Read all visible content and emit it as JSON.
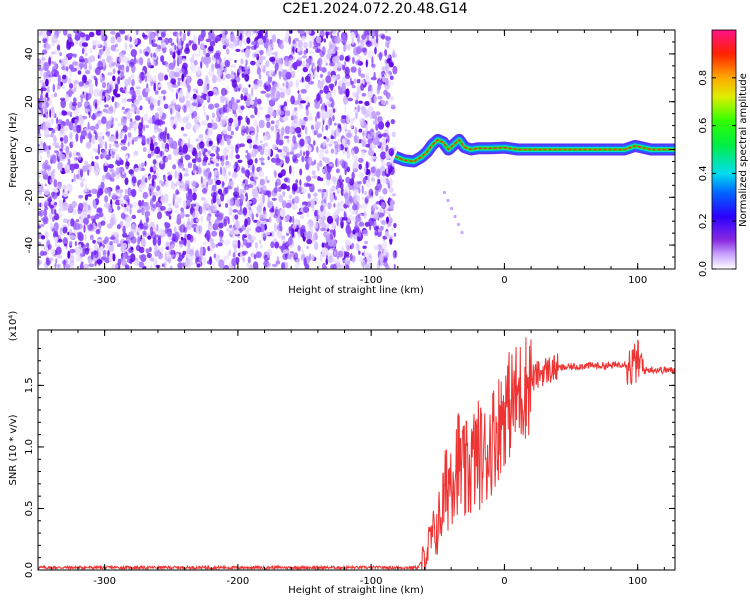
{
  "title": "C2E1.2024.072.20.48.G14",
  "chart_data": [
    {
      "type": "heatmap",
      "xlabel": "Height of straight line (km)",
      "ylabel": "Frequency (Hz)",
      "xlim": [
        -350,
        128
      ],
      "ylim": [
        -50,
        50
      ],
      "x_ticks": [
        -300,
        -200,
        -100,
        0,
        100
      ],
      "y_ticks": [
        -40,
        -20,
        0,
        20,
        40
      ],
      "noise_region_x": [
        -350,
        -82
      ],
      "signal_track": {
        "x": [
          -82,
          -75,
          -68,
          -62,
          -58,
          -54,
          -50,
          -46,
          -42,
          -38,
          -34,
          -30,
          -25,
          -20,
          -10,
          0,
          10,
          30,
          60,
          90,
          98,
          110,
          128
        ],
        "freq": [
          -3,
          -4.5,
          -5,
          -3,
          -1,
          2,
          4,
          3,
          0,
          2,
          4,
          1,
          0,
          0.5,
          0.5,
          0.8,
          0,
          0,
          0,
          0,
          1.5,
          0,
          0
        ]
      },
      "colorbar": {
        "label": "Normalized spectral amplitude",
        "range": [
          0.0,
          1.0
        ],
        "ticks": [
          0.0,
          0.2,
          0.4,
          0.6,
          0.8
        ],
        "tick_labels": [
          "0.0",
          "0.2",
          "0.4",
          "0.6",
          "0.8"
        ]
      }
    },
    {
      "type": "line",
      "xlabel": "Height of straight line (km)",
      "ylabel": "SNR (10 * v/v)",
      "y_multiplier": "(x10⁴)",
      "xlim": [
        -350,
        128
      ],
      "ylim": [
        0,
        1.95
      ],
      "x_ticks": [
        -300,
        -200,
        -100,
        0,
        100
      ],
      "y_ticks": [
        0.0,
        0.5,
        1.0,
        1.5
      ],
      "y_tick_labels": [
        "0.0",
        "0.5",
        "1.0",
        "1.5"
      ],
      "color": "#ee3333",
      "series": [
        {
          "x": [
            -350,
            -300,
            -200,
            -100,
            -65,
            -60,
            -55,
            -50,
            -45,
            -40,
            -35,
            -30,
            -25,
            -20,
            -15,
            -10,
            -5,
            0,
            10,
            20,
            30,
            40,
            60,
            80,
            90,
            95,
            100,
            105,
            110,
            128
          ],
          "values": [
            0.02,
            0.02,
            0.02,
            0.02,
            0.02,
            0.1,
            0.25,
            0.35,
            0.6,
            0.8,
            0.9,
            0.75,
            0.85,
            0.95,
            0.9,
            1.05,
            1.15,
            1.3,
            1.42,
            1.55,
            1.62,
            1.64,
            1.66,
            1.66,
            1.68,
            1.65,
            1.7,
            1.62,
            1.63,
            1.62
          ]
        }
      ]
    }
  ]
}
